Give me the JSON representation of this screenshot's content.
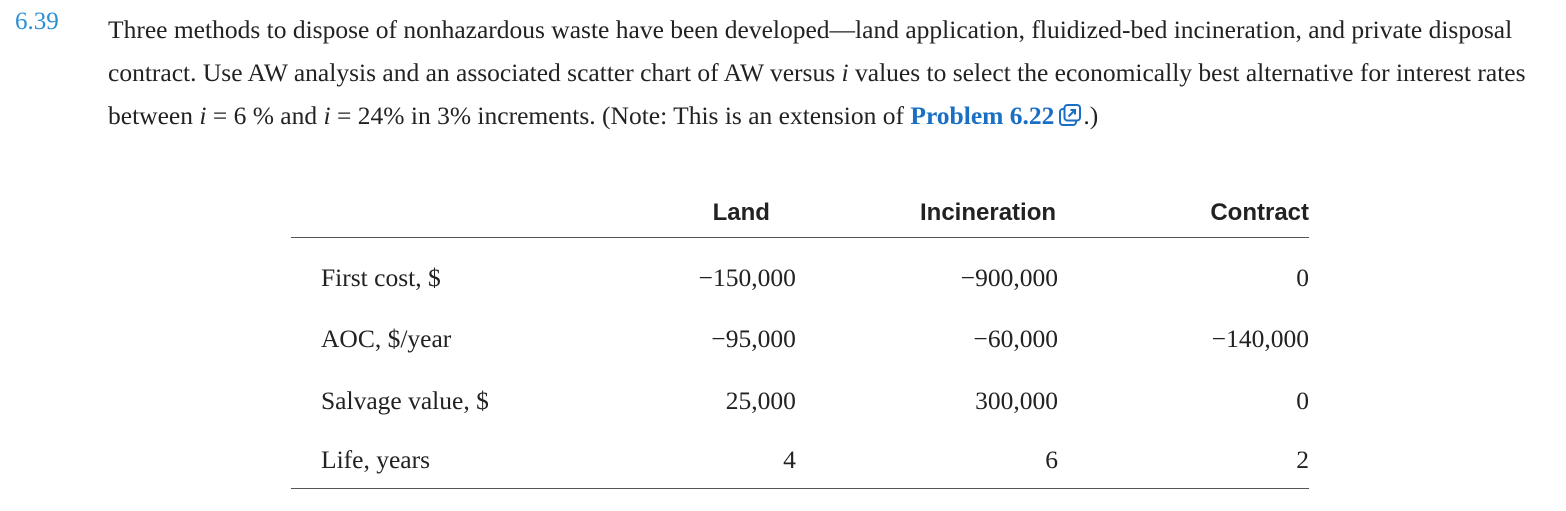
{
  "problem": {
    "number": "6.39",
    "text_part1": "Three methods to dispose of nonhazardous waste have been developed—land application, fluidized-bed incineration, and private disposal contract. Use AW analysis and an associated scatter chart of AW versus ",
    "var_i1": "i",
    "text_part2": " values to select the economically best alternative for interest rates between ",
    "var_i2": "i",
    "text_part3": " = 6 % and ",
    "var_i3": "i",
    "text_part4": " = 24% in 3% increments. (Note: This is an extension of ",
    "link_text": "Problem 6.22",
    "link_icon": "external-link-icon",
    "text_part5": ".)"
  },
  "table": {
    "headers": {
      "label": "",
      "land": "Land",
      "incineration": "Incineration",
      "contract": "Contract"
    },
    "rows": [
      {
        "label": "First cost, $",
        "land": "−150,000",
        "incineration": "−900,000",
        "contract": "0"
      },
      {
        "label": "AOC, $/year",
        "land": "−95,000",
        "incineration": "−60,000",
        "contract": "−140,000"
      },
      {
        "label": "Salvage value, $",
        "land": "25,000",
        "incineration": "300,000",
        "contract": "0"
      },
      {
        "label": "Life, years",
        "land": "4",
        "incineration": "6",
        "contract": "2"
      }
    ]
  },
  "colors": {
    "problem_number": "#2b8fd6",
    "link": "#1a6fc4",
    "text": "#222222"
  }
}
